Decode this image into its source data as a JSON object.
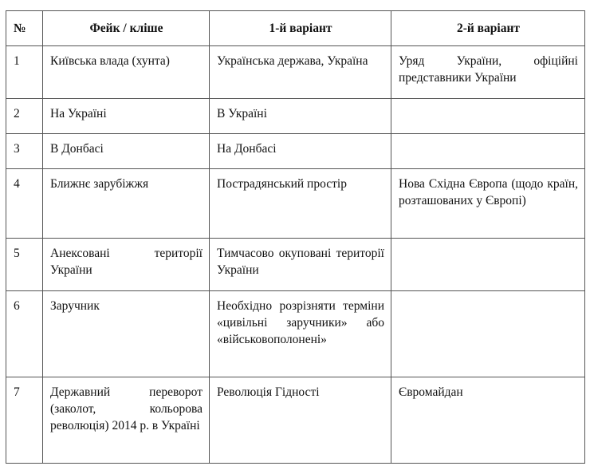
{
  "table": {
    "headers": [
      "№",
      "Фейк / кліше",
      "1-й варіант",
      "2-й варіант"
    ],
    "rows": [
      [
        "1",
        "Київська влада (хунта)",
        "Українська держава, Україна",
        "Уряд України, офіційні представники України"
      ],
      [
        "2",
        "На Україні",
        "В Україні",
        ""
      ],
      [
        "3",
        "В Донбасі",
        "На Донбасі",
        ""
      ],
      [
        "4",
        "Ближнє зарубіжжя",
        "Пострадянський простір",
        "Нова Східна Європа (щодо країн, розташованих у Європі)"
      ],
      [
        "5",
        "Анексовані території України",
        "Тимчасово окуповані території України",
        ""
      ],
      [
        "6",
        "Заручник",
        "Необхідно розрізняти терміни «цивільні заручники» або «військовополонені»",
        ""
      ],
      [
        "7",
        "Державний переворот (заколот, кольорова революція) 2014 р. в Україні",
        "Революція Гідності",
        "Євромайдан"
      ]
    ]
  }
}
